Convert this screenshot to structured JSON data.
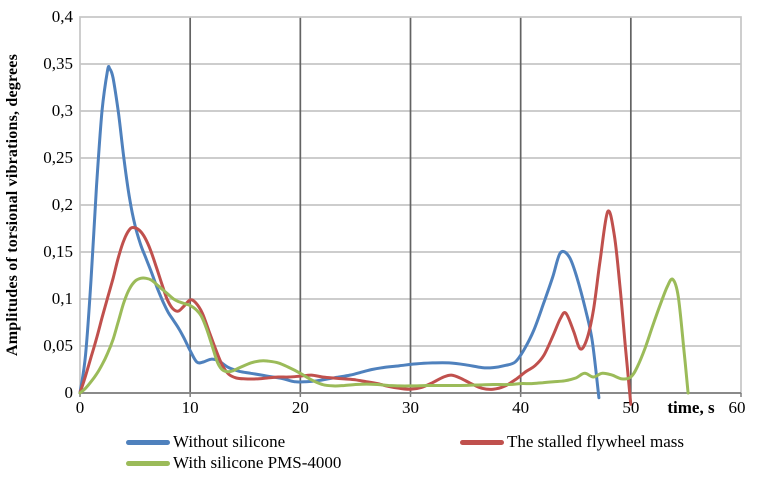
{
  "chart_data": {
    "type": "line",
    "title": "",
    "xlabel": "time, s",
    "ylabel": "Amplitudes of torsional vibrations, degrees",
    "xlim": [
      0,
      60
    ],
    "ylim": [
      0,
      0.4
    ],
    "x_ticks": [
      0,
      10,
      20,
      30,
      40,
      50,
      60
    ],
    "x_tick_labels": [
      "0",
      "10",
      "20",
      "30",
      "40",
      "50",
      "60"
    ],
    "y_ticks": [
      0,
      0.05,
      0.1,
      0.15,
      0.2,
      0.25,
      0.3,
      0.35,
      0.4
    ],
    "y_tick_labels": [
      "0",
      "0,05",
      "0,1",
      "0,15",
      "0,2",
      "0,25",
      "0,3",
      "0,35",
      "0,4"
    ],
    "grid": "both",
    "legend_position": "bottom",
    "colors": {
      "h_gridline": "#c6c6c6",
      "v_gridline": "#636363",
      "border": "#c6c6c6",
      "axis": "#7f7f7f"
    },
    "series": [
      {
        "name": "Without silicone",
        "color": "#4f81bd",
        "points": [
          [
            0,
            0
          ],
          [
            0.5,
            0.04
          ],
          [
            1,
            0.12
          ],
          [
            1.5,
            0.22
          ],
          [
            2,
            0.3
          ],
          [
            2.5,
            0.343
          ],
          [
            2.7,
            0.345
          ],
          [
            3,
            0.335
          ],
          [
            3.5,
            0.297
          ],
          [
            4,
            0.248
          ],
          [
            4.5,
            0.207
          ],
          [
            5,
            0.178
          ],
          [
            5.5,
            0.158
          ],
          [
            6,
            0.143
          ],
          [
            6.5,
            0.128
          ],
          [
            7,
            0.112
          ],
          [
            7.5,
            0.098
          ],
          [
            8,
            0.086
          ],
          [
            8.5,
            0.077
          ],
          [
            9,
            0.068
          ],
          [
            9.5,
            0.057
          ],
          [
            10,
            0.045
          ],
          [
            10.6,
            0.033
          ],
          [
            11.2,
            0.033
          ],
          [
            11.9,
            0.036
          ],
          [
            12.6,
            0.034
          ],
          [
            13.5,
            0.027
          ],
          [
            14.5,
            0.023
          ],
          [
            15.5,
            0.021
          ],
          [
            16.5,
            0.019
          ],
          [
            17.5,
            0.017
          ],
          [
            18.5,
            0.015
          ],
          [
            19.5,
            0.012
          ],
          [
            20.5,
            0.012
          ],
          [
            21.5,
            0.013
          ],
          [
            22.5,
            0.015
          ],
          [
            23.5,
            0.017
          ],
          [
            24.5,
            0.019
          ],
          [
            25.5,
            0.022
          ],
          [
            26.5,
            0.025
          ],
          [
            27.5,
            0.027
          ],
          [
            29,
            0.029
          ],
          [
            30.5,
            0.031
          ],
          [
            32,
            0.032
          ],
          [
            33.5,
            0.032
          ],
          [
            35,
            0.03
          ],
          [
            36.5,
            0.027
          ],
          [
            37.5,
            0.027
          ],
          [
            38.5,
            0.029
          ],
          [
            39.5,
            0.033
          ],
          [
            40.3,
            0.046
          ],
          [
            41.2,
            0.067
          ],
          [
            42.1,
            0.096
          ],
          [
            42.9,
            0.123
          ],
          [
            43.6,
            0.149
          ],
          [
            44.4,
            0.145
          ],
          [
            45.1,
            0.123
          ],
          [
            45.9,
            0.088
          ],
          [
            46.5,
            0.055
          ],
          [
            47.1,
            -0.005
          ]
        ]
      },
      {
        "name": "The stalled flywheel mass",
        "color": "#c0504d",
        "points": [
          [
            0,
            0
          ],
          [
            0.5,
            0.018
          ],
          [
            1,
            0.038
          ],
          [
            1.5,
            0.058
          ],
          [
            2,
            0.08
          ],
          [
            2.5,
            0.101
          ],
          [
            3,
            0.122
          ],
          [
            3.5,
            0.145
          ],
          [
            4,
            0.163
          ],
          [
            4.5,
            0.174
          ],
          [
            4.9,
            0.176
          ],
          [
            5.4,
            0.173
          ],
          [
            5.9,
            0.165
          ],
          [
            6.4,
            0.152
          ],
          [
            6.9,
            0.135
          ],
          [
            7.4,
            0.117
          ],
          [
            7.9,
            0.1
          ],
          [
            8.4,
            0.09
          ],
          [
            8.9,
            0.087
          ],
          [
            9.4,
            0.092
          ],
          [
            10,
            0.099
          ],
          [
            10.5,
            0.096
          ],
          [
            11.1,
            0.085
          ],
          [
            11.7,
            0.066
          ],
          [
            12.3,
            0.047
          ],
          [
            12.9,
            0.03
          ],
          [
            13.5,
            0.02
          ],
          [
            14.2,
            0.016
          ],
          [
            15,
            0.015
          ],
          [
            16,
            0.015
          ],
          [
            17,
            0.016
          ],
          [
            18,
            0.017
          ],
          [
            19,
            0.017
          ],
          [
            20,
            0.018
          ],
          [
            21,
            0.019
          ],
          [
            22,
            0.017
          ],
          [
            23,
            0.016
          ],
          [
            24,
            0.015
          ],
          [
            25,
            0.014
          ],
          [
            26,
            0.012
          ],
          [
            27,
            0.01
          ],
          [
            28,
            0.007
          ],
          [
            29,
            0.005
          ],
          [
            30,
            0.004
          ],
          [
            31,
            0.006
          ],
          [
            32,
            0.011
          ],
          [
            33,
            0.017
          ],
          [
            33.7,
            0.019
          ],
          [
            34.5,
            0.016
          ],
          [
            35.5,
            0.01
          ],
          [
            36.5,
            0.005
          ],
          [
            37.5,
            0.004
          ],
          [
            38.5,
            0.007
          ],
          [
            39.5,
            0.014
          ],
          [
            40.5,
            0.023
          ],
          [
            41.3,
            0.029
          ],
          [
            42.1,
            0.04
          ],
          [
            42.9,
            0.06
          ],
          [
            43.6,
            0.079
          ],
          [
            44.1,
            0.085
          ],
          [
            44.8,
            0.066
          ],
          [
            45.4,
            0.047
          ],
          [
            46,
            0.057
          ],
          [
            46.6,
            0.088
          ],
          [
            47.2,
            0.14
          ],
          [
            47.9,
            0.193
          ],
          [
            48.5,
            0.168
          ],
          [
            49,
            0.115
          ],
          [
            49.5,
            0.05
          ],
          [
            50,
            -0.012
          ]
        ]
      },
      {
        "name": "With silicone PMS-4000",
        "color": "#9bbb59",
        "points": [
          [
            0,
            0
          ],
          [
            0.5,
            0.005
          ],
          [
            1,
            0.012
          ],
          [
            1.5,
            0.02
          ],
          [
            2,
            0.03
          ],
          [
            2.5,
            0.042
          ],
          [
            3,
            0.057
          ],
          [
            3.5,
            0.077
          ],
          [
            4,
            0.097
          ],
          [
            4.5,
            0.111
          ],
          [
            5,
            0.119
          ],
          [
            5.5,
            0.122
          ],
          [
            6,
            0.122
          ],
          [
            6.5,
            0.12
          ],
          [
            7,
            0.115
          ],
          [
            7.5,
            0.11
          ],
          [
            8,
            0.105
          ],
          [
            8.5,
            0.1
          ],
          [
            9,
            0.097
          ],
          [
            9.5,
            0.095
          ],
          [
            10,
            0.093
          ],
          [
            10.5,
            0.089
          ],
          [
            11,
            0.082
          ],
          [
            11.5,
            0.068
          ],
          [
            12,
            0.05
          ],
          [
            12.5,
            0.032
          ],
          [
            13,
            0.024
          ],
          [
            13.7,
            0.023
          ],
          [
            14.5,
            0.027
          ],
          [
            15.5,
            0.032
          ],
          [
            16.3,
            0.034
          ],
          [
            17,
            0.034
          ],
          [
            18,
            0.032
          ],
          [
            19,
            0.027
          ],
          [
            20,
            0.021
          ],
          [
            21,
            0.014
          ],
          [
            22,
            0.009
          ],
          [
            23,
            0.0075
          ],
          [
            24,
            0.008
          ],
          [
            25,
            0.009
          ],
          [
            26,
            0.0095
          ],
          [
            27,
            0.009
          ],
          [
            28,
            0.008
          ],
          [
            29,
            0.0075
          ],
          [
            30,
            0.0075
          ],
          [
            31.5,
            0.008
          ],
          [
            33,
            0.008
          ],
          [
            34.5,
            0.008
          ],
          [
            36,
            0.0085
          ],
          [
            37.5,
            0.009
          ],
          [
            39,
            0.009
          ],
          [
            40,
            0.01
          ],
          [
            41,
            0.01
          ],
          [
            42,
            0.011
          ],
          [
            43,
            0.012
          ],
          [
            44,
            0.013
          ],
          [
            45,
            0.016
          ],
          [
            45.8,
            0.021
          ],
          [
            46.6,
            0.017
          ],
          [
            47.4,
            0.021
          ],
          [
            48.3,
            0.019
          ],
          [
            49.2,
            0.015
          ],
          [
            50,
            0.017
          ],
          [
            50.6,
            0.028
          ],
          [
            51.3,
            0.048
          ],
          [
            52,
            0.072
          ],
          [
            52.7,
            0.095
          ],
          [
            53.3,
            0.113
          ],
          [
            53.8,
            0.121
          ],
          [
            54.3,
            0.103
          ],
          [
            54.8,
            0.048
          ],
          [
            55.2,
            0
          ]
        ]
      }
    ]
  }
}
